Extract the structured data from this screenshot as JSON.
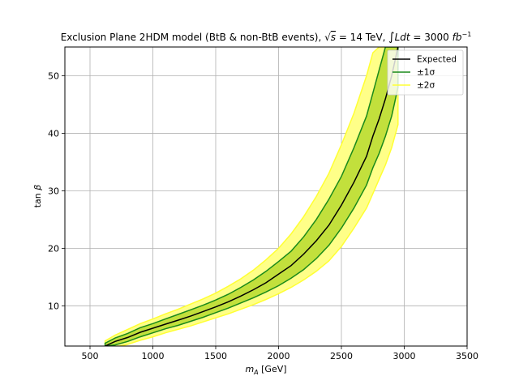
{
  "chart_data": {
    "type": "area",
    "title_parts": {
      "main": "Exclusion Plane 2HDM model (BtB & non-BtB events), ",
      "sqrt": "√",
      "s": "s",
      "energy": " = 14 TeV, ",
      "integral": "∫",
      "ldt": "Ldt",
      "lumi": " = 3000 ",
      "fb": "fb",
      "exp": "−1"
    },
    "xlabel_parts": {
      "m": "m",
      "sub": "A",
      "unit": " [GeV]"
    },
    "ylabel_parts": {
      "tan": "tan ",
      "beta": "β"
    },
    "xlim": [
      300,
      3500
    ],
    "ylim": [
      3,
      55
    ],
    "xticks": [
      500,
      1000,
      1500,
      2000,
      2500,
      3000,
      3500
    ],
    "yticks": [
      10,
      20,
      30,
      40,
      50
    ],
    "grid": true,
    "legend_position": "top-right",
    "colors": {
      "band2": "#ffff88",
      "band2_edge": "#ffff33",
      "band1": "#c2e03c",
      "band1_edge": "#1a8a1a",
      "expected": "#000000"
    },
    "series": [
      {
        "name": "Expected",
        "x": [
          620,
          700,
          800,
          900,
          1000,
          1100,
          1200,
          1300,
          1400,
          1500,
          1600,
          1700,
          1800,
          1900,
          2000,
          2100,
          2200,
          2300,
          2400,
          2500,
          2600,
          2700,
          2750,
          2800,
          2850,
          2900,
          2950
        ],
        "y": [
          3,
          3.8,
          4.5,
          5.4,
          6.1,
          6.8,
          7.5,
          8.2,
          9.0,
          9.8,
          10.7,
          11.7,
          12.8,
          14.0,
          15.5,
          17.0,
          19.0,
          21.3,
          24.0,
          27.5,
          31.5,
          36.0,
          39.5,
          42.5,
          46.0,
          50.0,
          55.0
        ]
      },
      {
        "name": "±1σ",
        "y_lower": [
          3,
          3.2,
          3.8,
          4.6,
          5.3,
          6.0,
          6.6,
          7.3,
          8.0,
          8.8,
          9.6,
          10.5,
          11.4,
          12.4,
          13.5,
          14.8,
          16.3,
          18.2,
          20.5,
          23.5,
          27.0,
          31.0,
          34.0,
          36.5,
          39.5,
          43.0,
          48.0
        ],
        "y_upper": [
          3.5,
          4.4,
          5.2,
          6.2,
          6.9,
          7.7,
          8.5,
          9.3,
          10.1,
          11.0,
          12.0,
          13.2,
          14.5,
          16.0,
          17.7,
          19.5,
          22.0,
          25.0,
          28.5,
          32.5,
          37.5,
          43.0,
          47.0,
          51.0,
          55.0,
          55.0,
          55.0
        ]
      },
      {
        "name": "±2σ",
        "y_lower": [
          2.6,
          2.8,
          3.3,
          4.0,
          4.6,
          5.3,
          5.9,
          6.5,
          7.2,
          7.9,
          8.6,
          9.4,
          10.2,
          11.1,
          12.1,
          13.2,
          14.5,
          16.0,
          17.8,
          20.3,
          23.5,
          27.0,
          29.5,
          32.0,
          34.5,
          37.5,
          41.5
        ],
        "y_upper": [
          3.9,
          4.9,
          5.9,
          6.9,
          7.7,
          8.6,
          9.4,
          10.3,
          11.2,
          12.2,
          13.4,
          14.7,
          16.2,
          18.0,
          20.0,
          22.5,
          25.5,
          29.0,
          33.0,
          38.0,
          43.5,
          50.0,
          54.0,
          55.0,
          55.0,
          55.0,
          55.0
        ]
      }
    ]
  }
}
